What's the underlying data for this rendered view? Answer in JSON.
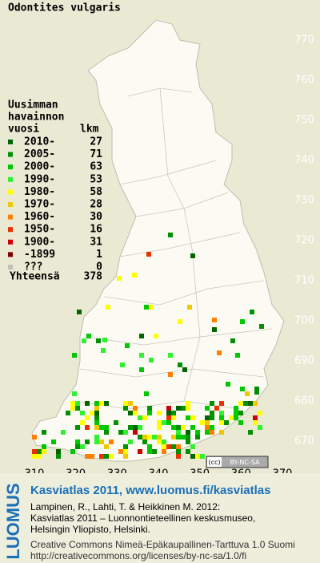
{
  "map": {
    "title": "Odontites vulgaris",
    "legend": {
      "heading": [
        "Uusimman",
        "havainnon"
      ],
      "col_year": "vuosi",
      "col_count": "lkm",
      "entries": [
        {
          "label": "2010-",
          "count": 27,
          "color": "#006400"
        },
        {
          "label": "2005-",
          "count": 71,
          "color": "#009000"
        },
        {
          "label": "2000-",
          "count": 63,
          "color": "#00c800"
        },
        {
          "label": "1990-",
          "count": 53,
          "color": "#30f030"
        },
        {
          "label": "1980-",
          "count": 58,
          "color": "#ffff00"
        },
        {
          "label": "1970-",
          "count": 28,
          "color": "#f0c800"
        },
        {
          "label": "1960-",
          "count": 30,
          "color": "#ff8000"
        },
        {
          "label": "1950-",
          "count": 16,
          "color": "#e83000"
        },
        {
          "label": "1900-",
          "count": 31,
          "color": "#cc0000"
        },
        {
          "label": "-1899",
          "count": 1,
          "color": "#800000"
        },
        {
          "label": "???",
          "count": 0,
          "color": "#c0c0c0"
        }
      ],
      "total_label": "Yhteensä",
      "total": 378
    },
    "x_axis": [
      310,
      320,
      330,
      340,
      350,
      360,
      370
    ],
    "y_axis": [
      770,
      760,
      750,
      740,
      730,
      720,
      710,
      700,
      690,
      680,
      670
    ],
    "badge": "BY-NC-SA"
  },
  "footer": {
    "logo": "LUOMUS",
    "link": "Kasviatlas 2011, www.luomus.fi/kasviatlas",
    "citation": [
      "Lampinen, R., Lahti, T. & Heikkinen M. 2012:",
      "Kasviatlas 2011 – Luonnontieteellinen keskusmuseo,",
      "Helsingin Yliopisto, Helsinki."
    ],
    "license": [
      "Creative Commons Nimeä-Epäkaupallinen-Tarttuva 1.0 Suomi",
      "http://creativecommons.org/licenses/by-nc-sa/1.0/fi"
    ]
  }
}
